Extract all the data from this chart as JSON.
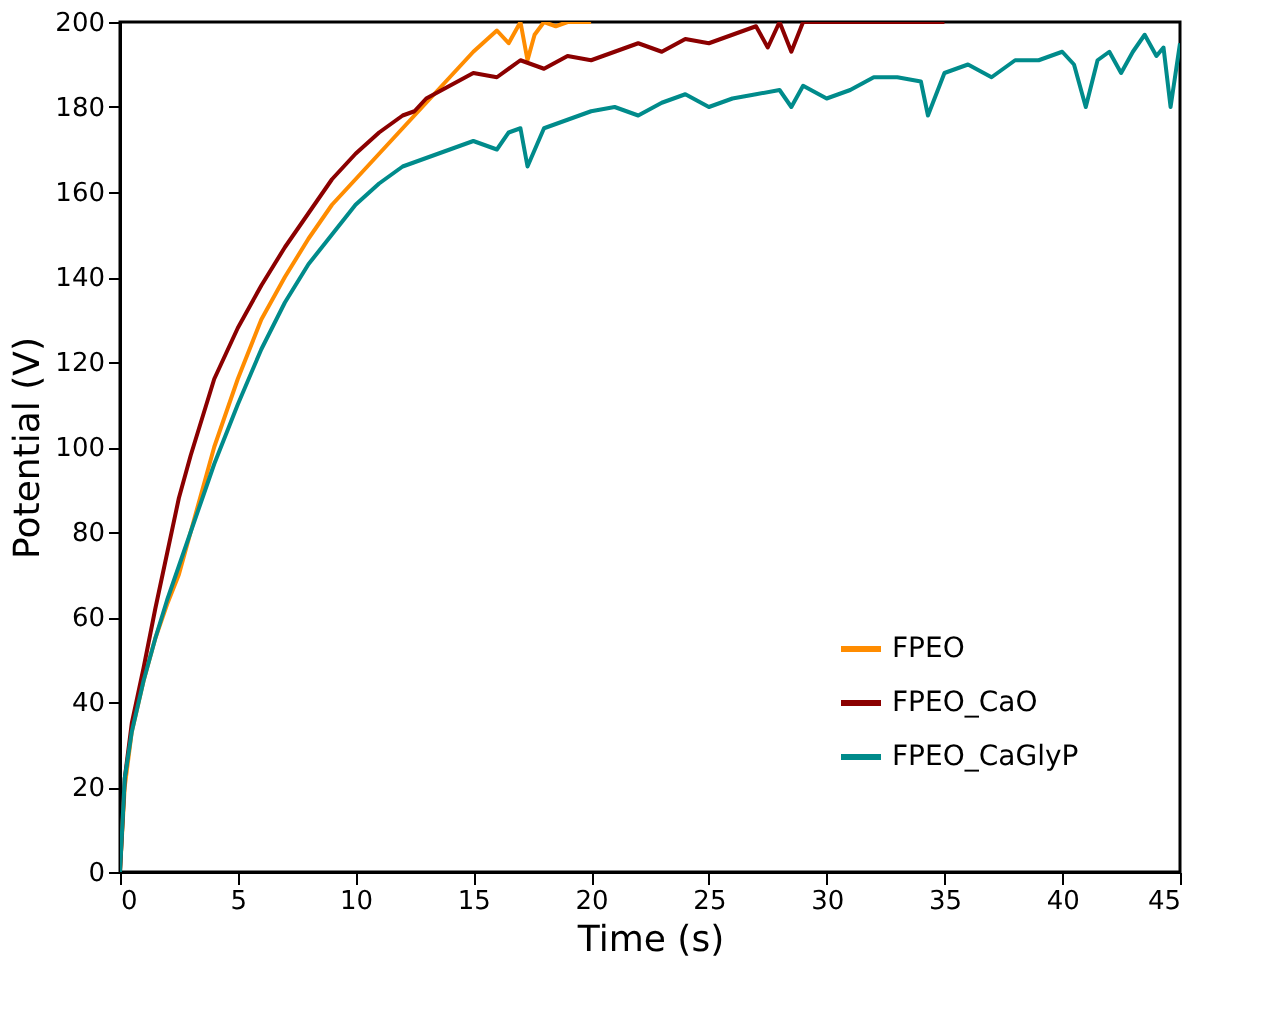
{
  "chart_data": {
    "type": "line",
    "xlabel": "Time (s)",
    "ylabel": "Potential (V)",
    "xlim": [
      0,
      45
    ],
    "ylim": [
      0,
      200
    ],
    "xticks": [
      0,
      5,
      10,
      15,
      20,
      25,
      30,
      35,
      40,
      45
    ],
    "yticks": [
      0,
      20,
      40,
      60,
      80,
      100,
      120,
      140,
      160,
      180,
      200
    ],
    "grid": false,
    "legend": "bottom right",
    "marker": "none",
    "line_style": "solid",
    "series": [
      {
        "name": "FPEO",
        "color": "#ff8c00",
        "x": [
          0,
          0.2,
          0.5,
          1,
          1.5,
          2,
          2.5,
          3,
          3.5,
          4,
          5,
          6,
          7,
          8,
          9,
          10,
          11,
          12,
          12.5,
          13,
          14,
          15,
          16,
          16.5,
          17,
          17.3,
          17.6,
          18,
          18.5,
          19,
          20
        ],
        "values": [
          0,
          20,
          33,
          45,
          55,
          63,
          70,
          80,
          90,
          100,
          116,
          130,
          140,
          149,
          157,
          163,
          169,
          175,
          178,
          181,
          187,
          193,
          198,
          195,
          200,
          191,
          197,
          200,
          199,
          200,
          200
        ]
      },
      {
        "name": "FPEO_CaO",
        "color": "#8b0000",
        "x": [
          0,
          0.2,
          0.5,
          1,
          1.5,
          2,
          2.5,
          3,
          4,
          5,
          6,
          7,
          8,
          9,
          10,
          11,
          12,
          12.5,
          13,
          14,
          15,
          16,
          17,
          18,
          19,
          20,
          21,
          22,
          23,
          24,
          25,
          26,
          27,
          27.5,
          28,
          28.5,
          29,
          30,
          35
        ],
        "values": [
          0,
          22,
          35,
          48,
          62,
          75,
          88,
          98,
          116,
          128,
          138,
          147,
          155,
          163,
          169,
          174,
          178,
          179,
          182,
          185,
          188,
          187,
          191,
          189,
          192,
          191,
          193,
          195,
          193,
          196,
          195,
          197,
          199,
          194,
          200,
          193,
          200,
          200,
          200
        ]
      },
      {
        "name": "FPEO_CaGlyP",
        "color": "#008b8b",
        "x": [
          0,
          0.2,
          0.5,
          1,
          1.5,
          2,
          2.5,
          3,
          3.5,
          4,
          5,
          6,
          7,
          8,
          9,
          10,
          11,
          12,
          13,
          14,
          15,
          16,
          16.5,
          17,
          17.3,
          18,
          19,
          20,
          21,
          22,
          23,
          24,
          25,
          26,
          27,
          28,
          28.5,
          29,
          30,
          31,
          32,
          33,
          34,
          34.3,
          35,
          36,
          37,
          38,
          39,
          40,
          40.5,
          41,
          41.5,
          42,
          42.5,
          43,
          43.5,
          44,
          44.3,
          44.6,
          45
        ],
        "values": [
          0,
          22,
          33,
          45,
          55,
          64,
          72,
          80,
          88,
          96,
          110,
          123,
          134,
          143,
          150,
          157,
          162,
          166,
          168,
          170,
          172,
          170,
          174,
          175,
          166,
          175,
          177,
          179,
          180,
          178,
          181,
          183,
          180,
          182,
          183,
          184,
          180,
          185,
          182,
          184,
          187,
          187,
          186,
          178,
          188,
          190,
          187,
          191,
          191,
          193,
          190,
          180,
          191,
          193,
          188,
          193,
          197,
          192,
          194,
          180,
          195
        ]
      }
    ]
  }
}
